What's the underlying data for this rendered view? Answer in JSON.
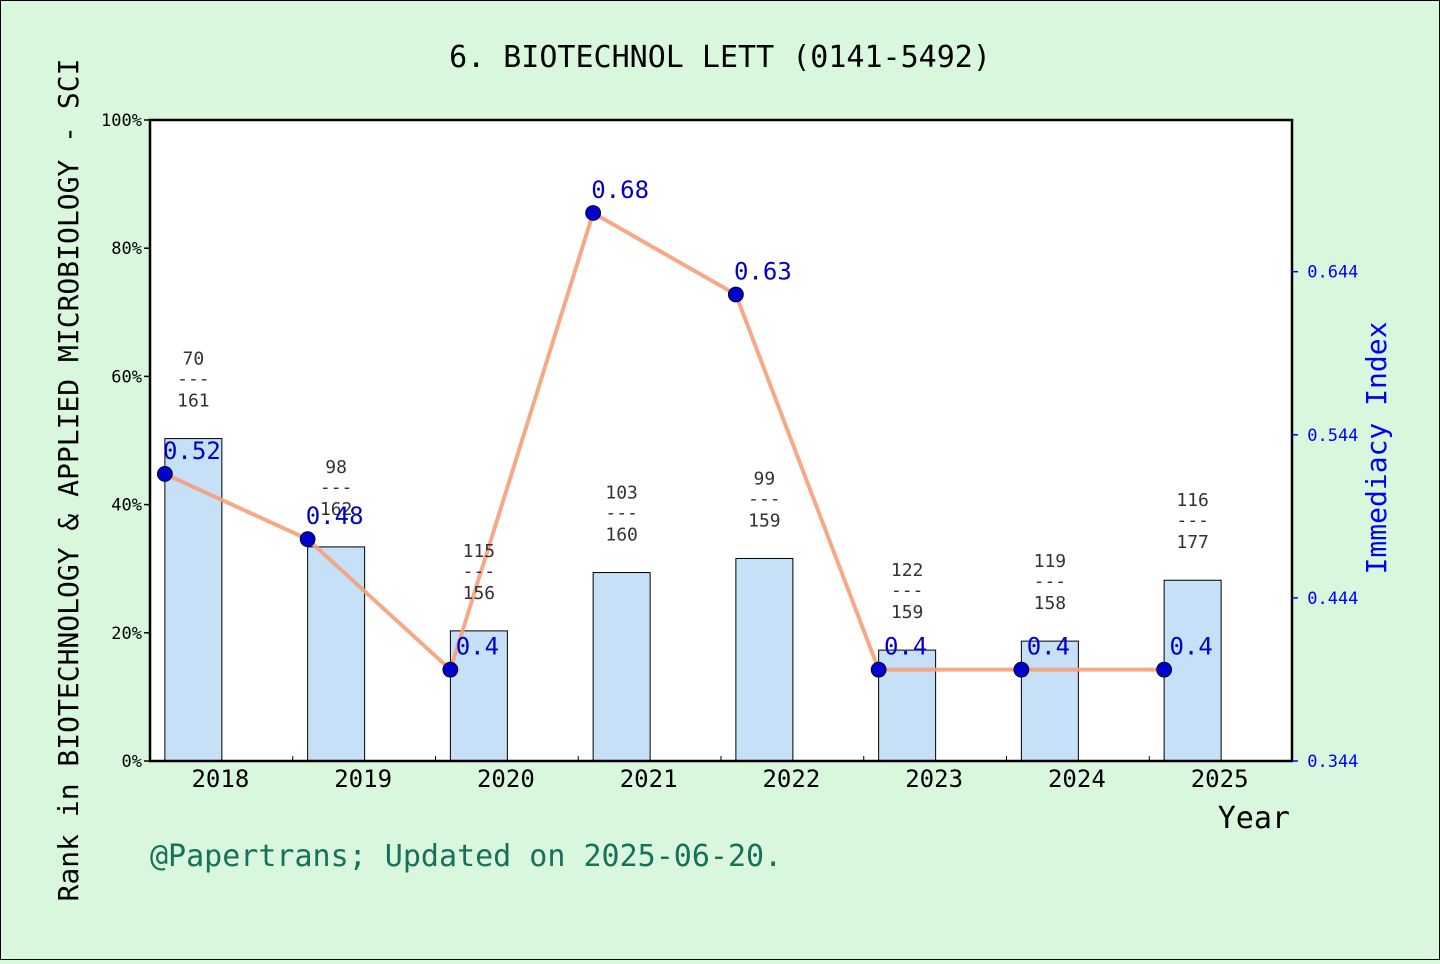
{
  "chart_data": {
    "type": "bar+line",
    "title": "6. BIOTECHNOL LETT (0141-5492)",
    "ylabel_left": "Rank in BIOTECHNOLOGY & APPLIED MICROBIOLOGY - SCI",
    "ylabel_right": "Immediacy Index",
    "xlabel": "Year",
    "categories": [
      "2018",
      "2019",
      "2020",
      "2021",
      "2022",
      "2023",
      "2024",
      "2025"
    ],
    "yticks_left": [
      "0%",
      "20%",
      "40%",
      "60%",
      "80%",
      "100%"
    ],
    "ylim_left": [
      0,
      100
    ],
    "yticks_right": [
      "0.344",
      "0.444",
      "0.544",
      "0.644"
    ],
    "ylim_right": [
      0.344,
      0.737
    ],
    "rank_bars": {
      "percent": [
        50.3,
        33.4,
        20.3,
        29.4,
        31.6,
        17.3,
        18.7,
        28.2
      ],
      "rank": [
        "70",
        "98",
        "115",
        "103",
        "99",
        "122",
        "119",
        "116"
      ],
      "total": [
        "161",
        "162",
        "156",
        "160",
        "159",
        "159",
        "158",
        "177"
      ],
      "separator": "---",
      "color": "#c5e0f7"
    },
    "immediacy_line": {
      "values": [
        0.52,
        0.48,
        0.4,
        0.68,
        0.63,
        0.4,
        0.4,
        0.4
      ],
      "labels": [
        "0.52",
        "0.48",
        "0.4",
        "0.68",
        "0.63",
        "0.4",
        "0.4",
        "0.4"
      ],
      "line_color": "#f5a07a",
      "marker_color": "#0000cc"
    },
    "footer": "@Papertrans; Updated on 2025-06-20.",
    "background": "#d9f7dd"
  }
}
